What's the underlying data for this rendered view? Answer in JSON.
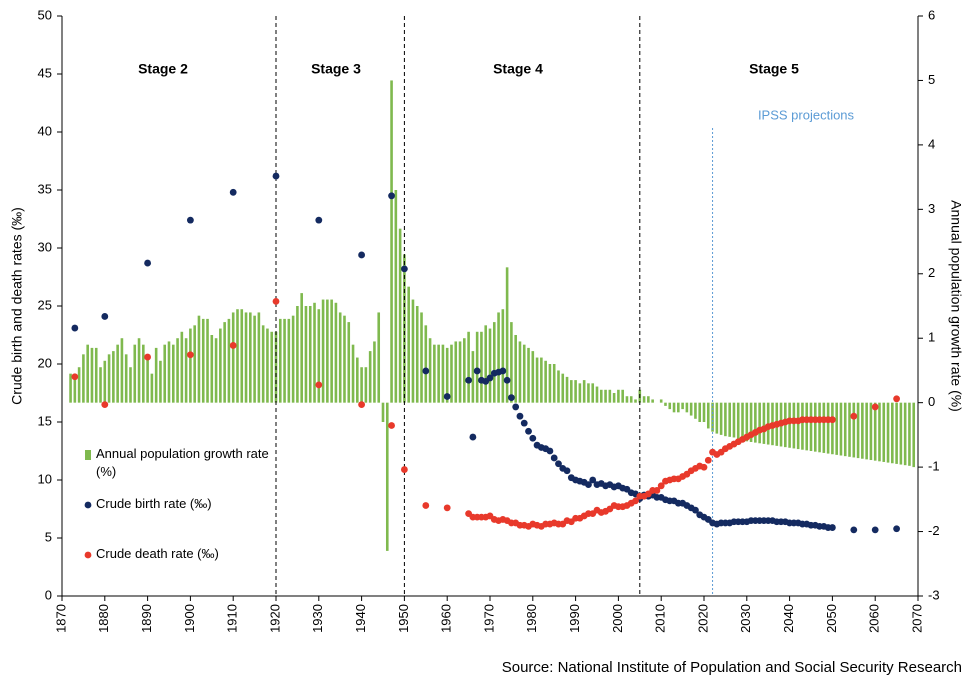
{
  "chart_data": {
    "type": "bar_scatter",
    "ylabel": "Crude birth and death rates (‰)",
    "y2label": "Annual population growth rate (%)",
    "source": "Source: National Institute of Population and Social Security Research",
    "xlim": [
      1870,
      2070
    ],
    "xticks": [
      1870,
      1880,
      1890,
      1900,
      1910,
      1920,
      1930,
      1940,
      1950,
      1960,
      1970,
      1980,
      1990,
      2000,
      2010,
      2020,
      2030,
      2040,
      2050,
      2060,
      2070
    ],
    "ylim": [
      0,
      50
    ],
    "yticks": [
      0,
      5,
      10,
      15,
      20,
      25,
      30,
      35,
      40,
      45,
      50
    ],
    "y2lim": [
      -3,
      6
    ],
    "y2ticks": [
      -3,
      -2,
      -1,
      0,
      1,
      2,
      3,
      4,
      5,
      6
    ],
    "stages": [
      {
        "label": "Stage 2"
      },
      {
        "label": "Stage 3"
      },
      {
        "label": "Stage 4"
      },
      {
        "label": "Stage 5"
      }
    ],
    "stage_boundaries": [
      1920,
      1950,
      2005
    ],
    "projection_start": 2022,
    "projection_label": "IPSS projections",
    "series": [
      {
        "name": "Annual population growth rate (%)",
        "kind": "bar",
        "axis": "y2",
        "color": "#7fb94e",
        "x": [
          1872,
          1873,
          1874,
          1875,
          1876,
          1877,
          1878,
          1879,
          1880,
          1881,
          1882,
          1883,
          1884,
          1885,
          1886,
          1887,
          1888,
          1889,
          1890,
          1891,
          1892,
          1893,
          1894,
          1895,
          1896,
          1897,
          1898,
          1899,
          1900,
          1901,
          1902,
          1903,
          1904,
          1905,
          1906,
          1907,
          1908,
          1909,
          1910,
          1911,
          1912,
          1913,
          1914,
          1915,
          1916,
          1917,
          1918,
          1919,
          1920,
          1921,
          1922,
          1923,
          1924,
          1925,
          1926,
          1927,
          1928,
          1929,
          1930,
          1931,
          1932,
          1933,
          1934,
          1935,
          1936,
          1937,
          1938,
          1939,
          1940,
          1941,
          1942,
          1943,
          1944,
          1945,
          1946,
          1947,
          1948,
          1949,
          1950,
          1951,
          1952,
          1953,
          1954,
          1955,
          1956,
          1957,
          1958,
          1959,
          1960,
          1961,
          1962,
          1963,
          1964,
          1965,
          1966,
          1967,
          1968,
          1969,
          1970,
          1971,
          1972,
          1973,
          1974,
          1975,
          1976,
          1977,
          1978,
          1979,
          1980,
          1981,
          1982,
          1983,
          1984,
          1985,
          1986,
          1987,
          1988,
          1989,
          1990,
          1991,
          1992,
          1993,
          1994,
          1995,
          1996,
          1997,
          1998,
          1999,
          2000,
          2001,
          2002,
          2003,
          2004,
          2005,
          2006,
          2007,
          2008,
          2009,
          2010,
          2011,
          2012,
          2013,
          2014,
          2015,
          2016,
          2017,
          2018,
          2019,
          2020,
          2021,
          2022,
          2023,
          2024,
          2025,
          2026,
          2027,
          2028,
          2029,
          2030,
          2031,
          2032,
          2033,
          2034,
          2035,
          2036,
          2037,
          2038,
          2039,
          2040,
          2041,
          2042,
          2043,
          2044,
          2045,
          2046,
          2047,
          2048,
          2049,
          2050,
          2051,
          2052,
          2053,
          2054,
          2055,
          2056,
          2057,
          2058,
          2059,
          2060,
          2061,
          2062,
          2063,
          2064,
          2065,
          2066,
          2067,
          2068,
          2069
        ],
        "values": [
          0.45,
          0.4,
          0.55,
          0.75,
          0.9,
          0.85,
          0.85,
          0.55,
          0.65,
          0.75,
          0.8,
          0.9,
          1.0,
          0.75,
          0.55,
          0.9,
          1.0,
          0.9,
          0.7,
          0.45,
          0.85,
          0.65,
          0.9,
          0.95,
          0.9,
          1.0,
          1.1,
          1.0,
          1.15,
          1.2,
          1.35,
          1.3,
          1.3,
          1.05,
          1.0,
          1.15,
          1.25,
          1.3,
          1.4,
          1.45,
          1.45,
          1.4,
          1.4,
          1.35,
          1.4,
          1.2,
          1.15,
          1.1,
          1.1,
          1.3,
          1.3,
          1.3,
          1.35,
          1.5,
          1.7,
          1.5,
          1.5,
          1.55,
          1.45,
          1.6,
          1.6,
          1.6,
          1.55,
          1.4,
          1.35,
          1.25,
          0.9,
          0.7,
          0.55,
          0.55,
          0.8,
          0.95,
          1.4,
          -0.3,
          -2.3,
          5.0,
          3.3,
          2.7,
          2.3,
          1.8,
          1.6,
          1.5,
          1.4,
          1.2,
          1.0,
          0.9,
          0.9,
          0.9,
          0.85,
          0.9,
          0.95,
          0.95,
          1.0,
          1.1,
          0.8,
          1.1,
          1.1,
          1.2,
          1.15,
          1.25,
          1.4,
          1.45,
          2.1,
          1.25,
          1.05,
          0.95,
          0.9,
          0.85,
          0.8,
          0.7,
          0.7,
          0.65,
          0.6,
          0.6,
          0.5,
          0.45,
          0.4,
          0.35,
          0.35,
          0.3,
          0.35,
          0.3,
          0.3,
          0.25,
          0.2,
          0.2,
          0.2,
          0.15,
          0.2,
          0.2,
          0.1,
          0.1,
          0.05,
          0.2,
          0.1,
          0.1,
          0.05,
          0,
          0.05,
          -0.05,
          -0.1,
          -0.15,
          -0.15,
          -0.1,
          -0.15,
          -0.2,
          -0.25,
          -0.3,
          -0.3,
          -0.4,
          -0.45,
          -0.48,
          -0.5,
          -0.52,
          -0.53,
          -0.54,
          -0.56,
          -0.58,
          -0.6,
          -0.61,
          -0.62,
          -0.63,
          -0.64,
          -0.65,
          -0.66,
          -0.67,
          -0.68,
          -0.69,
          -0.7,
          -0.71,
          -0.72,
          -0.73,
          -0.74,
          -0.75,
          -0.76,
          -0.77,
          -0.78,
          -0.79,
          -0.8,
          -0.81,
          -0.82,
          -0.83,
          -0.84,
          -0.85,
          -0.86,
          -0.87,
          -0.88,
          -0.89,
          -0.9,
          -0.91,
          -0.92,
          -0.93,
          -0.94,
          -0.95,
          -0.96,
          -0.97,
          -0.98,
          -1.0
        ]
      },
      {
        "name": "Crude birth rate (‰)",
        "kind": "scatter",
        "axis": "y",
        "color": "#142a60",
        "x": [
          1873,
          1880,
          1890,
          1900,
          1910,
          1920,
          1930,
          1940,
          1947,
          1950,
          1955,
          1960,
          1965,
          1966,
          1967,
          1968,
          1969,
          1970,
          1971,
          1972,
          1973,
          1974,
          1975,
          1976,
          1977,
          1978,
          1979,
          1980,
          1981,
          1982,
          1983,
          1984,
          1985,
          1986,
          1987,
          1988,
          1989,
          1990,
          1991,
          1992,
          1993,
          1994,
          1995,
          1996,
          1997,
          1998,
          1999,
          2000,
          2001,
          2002,
          2003,
          2004,
          2005,
          2006,
          2007,
          2008,
          2009,
          2010,
          2011,
          2012,
          2013,
          2014,
          2015,
          2016,
          2017,
          2018,
          2019,
          2020,
          2021,
          2022,
          2023,
          2024,
          2025,
          2026,
          2027,
          2028,
          2029,
          2030,
          2031,
          2032,
          2033,
          2034,
          2035,
          2036,
          2037,
          2038,
          2039,
          2040,
          2041,
          2042,
          2043,
          2044,
          2045,
          2046,
          2047,
          2048,
          2049,
          2050,
          2055,
          2060,
          2065
        ],
        "values": [
          23.1,
          24.1,
          28.7,
          32.4,
          34.8,
          36.2,
          32.4,
          29.4,
          34.5,
          28.2,
          19.4,
          17.2,
          18.6,
          13.7,
          19.4,
          18.6,
          18.5,
          18.8,
          19.2,
          19.3,
          19.4,
          18.6,
          17.1,
          16.3,
          15.5,
          14.9,
          14.2,
          13.6,
          13.0,
          12.8,
          12.7,
          12.5,
          11.9,
          11.4,
          11.0,
          10.8,
          10.2,
          10.0,
          9.9,
          9.8,
          9.6,
          10.0,
          9.6,
          9.7,
          9.5,
          9.6,
          9.4,
          9.5,
          9.3,
          9.2,
          8.9,
          8.8,
          8.4,
          8.7,
          8.6,
          8.7,
          8.5,
          8.5,
          8.3,
          8.2,
          8.2,
          8.0,
          8.0,
          7.8,
          7.6,
          7.4,
          7.0,
          6.8,
          6.6,
          6.3,
          6.2,
          6.3,
          6.3,
          6.3,
          6.4,
          6.4,
          6.4,
          6.4,
          6.5,
          6.5,
          6.5,
          6.5,
          6.5,
          6.5,
          6.4,
          6.4,
          6.4,
          6.3,
          6.3,
          6.3,
          6.2,
          6.2,
          6.1,
          6.1,
          6.0,
          6.0,
          5.9,
          5.9,
          5.7,
          5.7,
          5.8
        ]
      },
      {
        "name": "Crude death rate (‰)",
        "kind": "scatter",
        "axis": "y",
        "color": "#e8392b",
        "x": [
          1873,
          1880,
          1890,
          1900,
          1910,
          1920,
          1930,
          1940,
          1947,
          1950,
          1955,
          1960,
          1965,
          1966,
          1967,
          1968,
          1969,
          1970,
          1971,
          1972,
          1973,
          1974,
          1975,
          1976,
          1977,
          1978,
          1979,
          1980,
          1981,
          1982,
          1983,
          1984,
          1985,
          1986,
          1987,
          1988,
          1989,
          1990,
          1991,
          1992,
          1993,
          1994,
          1995,
          1996,
          1997,
          1998,
          1999,
          2000,
          2001,
          2002,
          2003,
          2004,
          2005,
          2006,
          2007,
          2008,
          2009,
          2010,
          2011,
          2012,
          2013,
          2014,
          2015,
          2016,
          2017,
          2018,
          2019,
          2020,
          2021,
          2022,
          2023,
          2024,
          2025,
          2026,
          2027,
          2028,
          2029,
          2030,
          2031,
          2032,
          2033,
          2034,
          2035,
          2036,
          2037,
          2038,
          2039,
          2040,
          2041,
          2042,
          2043,
          2044,
          2045,
          2046,
          2047,
          2048,
          2049,
          2050,
          2055,
          2060,
          2065
        ],
        "values": [
          18.9,
          16.5,
          20.6,
          20.8,
          21.6,
          25.4,
          18.2,
          16.5,
          14.7,
          10.9,
          7.8,
          7.6,
          7.1,
          6.8,
          6.8,
          6.8,
          6.8,
          6.9,
          6.6,
          6.5,
          6.6,
          6.5,
          6.3,
          6.3,
          6.1,
          6.1,
          6.0,
          6.2,
          6.1,
          6.0,
          6.2,
          6.2,
          6.3,
          6.2,
          6.2,
          6.5,
          6.4,
          6.7,
          6.7,
          6.9,
          7.1,
          7.1,
          7.4,
          7.2,
          7.3,
          7.5,
          7.8,
          7.7,
          7.7,
          7.8,
          8.0,
          8.2,
          8.6,
          8.6,
          8.8,
          9.1,
          9.1,
          9.5,
          9.9,
          10.0,
          10.1,
          10.1,
          10.3,
          10.5,
          10.8,
          11.0,
          11.2,
          11.1,
          11.7,
          12.4,
          12.2,
          12.4,
          12.7,
          12.9,
          13.1,
          13.3,
          13.5,
          13.7,
          13.9,
          14.1,
          14.3,
          14.4,
          14.6,
          14.7,
          14.8,
          14.9,
          15.0,
          15.1,
          15.1,
          15.1,
          15.2,
          15.2,
          15.2,
          15.2,
          15.2,
          15.2,
          15.2,
          15.2,
          15.5,
          16.3,
          17.0
        ]
      }
    ]
  }
}
